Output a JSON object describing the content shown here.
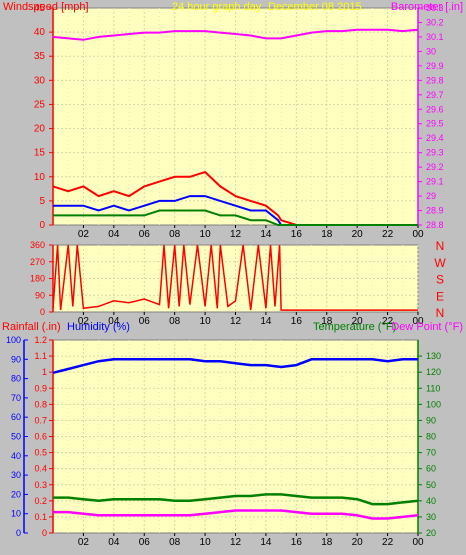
{
  "header": {
    "wind_label": "Windspeed [mph]",
    "graph_title": "24 hour graph day",
    "date": "December 08 2015",
    "baro_label": "Barometer [.in]"
  },
  "bottom_header": {
    "rain_label": "Rainfall (.in)",
    "hum_label": "Humidity (%)",
    "temp_label": "Temperature (°F)",
    "dew_label": "Dew Point (°F)"
  },
  "colors": {
    "background": "#c0c0c0",
    "plot": "#ffffc0",
    "wind": "#ff0000",
    "gust": "#0000ff",
    "avg": "#008000",
    "baro": "#ff00ff",
    "title": "#ffff00",
    "rain": "#ff0000",
    "humidity": "#0000ff",
    "temperature": "#008000",
    "dewpoint": "#ff00ff"
  },
  "chart_data": [
    {
      "type": "line",
      "name": "wind-barometer",
      "x_ticks": [
        "02",
        "04",
        "06",
        "08",
        "10",
        "12",
        "14",
        "16",
        "18",
        "20",
        "22",
        "00"
      ],
      "xlim": [
        0,
        24
      ],
      "ylim_left": [
        0,
        45
      ],
      "yticks_left": [
        "0",
        "5",
        "10",
        "15",
        "20",
        "25",
        "30",
        "35",
        "40",
        "45"
      ],
      "ylim_right": [
        28.8,
        30.3
      ],
      "yticks_right": [
        "28.8",
        "28.9",
        "29",
        "29.1",
        "29.2",
        "29.3",
        "29.4",
        "29.5",
        "29.6",
        "29.7",
        "29.8",
        "29.9",
        "30",
        "30.1",
        "30.2",
        "30.3"
      ],
      "series": [
        {
          "name": "Windspeed [mph]",
          "x": [
            0,
            1,
            2,
            3,
            4,
            5,
            6,
            7,
            8,
            9,
            10,
            11,
            12,
            13,
            14,
            14.8,
            15,
            16,
            17,
            18,
            19,
            20,
            21,
            22,
            23,
            24
          ],
          "values": [
            8,
            7,
            8,
            6,
            7,
            6,
            8,
            9,
            10,
            10,
            11,
            8,
            6,
            5,
            4,
            2,
            1,
            0,
            0,
            0,
            0,
            0,
            0,
            0,
            0,
            0
          ]
        },
        {
          "name": "Wind gust",
          "x": [
            0,
            1,
            2,
            3,
            4,
            5,
            6,
            7,
            8,
            9,
            10,
            11,
            12,
            13,
            14,
            14.8,
            15,
            16,
            17,
            18,
            19,
            20,
            21,
            22,
            23,
            24
          ],
          "values": [
            4,
            4,
            4,
            3,
            4,
            3,
            4,
            5,
            5,
            6,
            6,
            5,
            4,
            3,
            3,
            1,
            0,
            0,
            0,
            0,
            0,
            0,
            0,
            0,
            0,
            0
          ]
        },
        {
          "name": "Wind avg",
          "x": [
            0,
            1,
            2,
            3,
            4,
            5,
            6,
            7,
            8,
            9,
            10,
            11,
            12,
            13,
            14,
            14.8,
            15,
            16,
            17,
            18,
            19,
            20,
            21,
            22,
            23,
            24
          ],
          "values": [
            2,
            2,
            2,
            2,
            2,
            2,
            2,
            3,
            3,
            3,
            3,
            2,
            2,
            1,
            1,
            0,
            0,
            0,
            0,
            0,
            0,
            0,
            0,
            0,
            0,
            0
          ]
        },
        {
          "name": "Barometer [.in]",
          "x": [
            0,
            1,
            2,
            3,
            4,
            5,
            6,
            7,
            8,
            9,
            10,
            11,
            12,
            13,
            14,
            15,
            16,
            17,
            18,
            19,
            20,
            21,
            22,
            23,
            24
          ],
          "values": [
            30.1,
            30.09,
            30.08,
            30.1,
            30.11,
            30.12,
            30.13,
            30.13,
            30.14,
            30.14,
            30.14,
            30.13,
            30.12,
            30.11,
            30.09,
            30.09,
            30.11,
            30.13,
            30.14,
            30.14,
            30.15,
            30.15,
            30.15,
            30.14,
            30.15
          ]
        }
      ]
    },
    {
      "type": "line",
      "name": "wind-direction",
      "x_ticks": [
        "02",
        "04",
        "06",
        "08",
        "10",
        "12",
        "14",
        "16",
        "18",
        "20",
        "22",
        "00"
      ],
      "xlim": [
        0,
        24
      ],
      "ylim": [
        0,
        360
      ],
      "yticks": [
        "0",
        "90",
        "180",
        "270",
        "360"
      ],
      "dir_labels": [
        "N",
        "W",
        "S",
        "E",
        "N"
      ],
      "series": [
        {
          "name": "Wind direction",
          "x": [
            0,
            0.3,
            0.5,
            1,
            1.3,
            1.6,
            2,
            3,
            4,
            5,
            6,
            7,
            7.3,
            7.6,
            8,
            8.3,
            8.6,
            9,
            9.5,
            10,
            10.4,
            10.8,
            11,
            11.5,
            12,
            12.5,
            13,
            13.5,
            14,
            14.3,
            14.6,
            14.9,
            15,
            16,
            18,
            20,
            22,
            24
          ],
          "values": [
            20,
            360,
            10,
            360,
            30,
            360,
            20,
            30,
            60,
            50,
            70,
            40,
            360,
            20,
            360,
            30,
            360,
            40,
            360,
            30,
            360,
            20,
            360,
            30,
            60,
            360,
            10,
            360,
            20,
            360,
            30,
            360,
            10,
            10,
            10,
            10,
            10,
            10
          ]
        }
      ]
    },
    {
      "type": "line",
      "name": "rain-humidity-temperature",
      "x_ticks": [
        "02",
        "04",
        "06",
        "08",
        "10",
        "12",
        "14",
        "16",
        "18",
        "20",
        "22",
        "00"
      ],
      "xlim": [
        0,
        24
      ],
      "ylim_rain": [
        0,
        1.2
      ],
      "yticks_rain": [
        "0",
        "0.1",
        "0.2",
        "0.3",
        "0.4",
        "0.5",
        "0.6",
        "0.7",
        "0.8",
        "0.9",
        "1",
        "1.1",
        "1.2"
      ],
      "ylim_hum": [
        0,
        100
      ],
      "yticks_hum": [
        "0",
        "10",
        "20",
        "30",
        "40",
        "50",
        "60",
        "70",
        "80",
        "90",
        "100"
      ],
      "ylim_temp": [
        20,
        140
      ],
      "yticks_temp": [
        "20",
        "30",
        "40",
        "50",
        "60",
        "70",
        "80",
        "90",
        "100",
        "110",
        "120",
        "130"
      ],
      "series": [
        {
          "name": "Humidity (%)",
          "x": [
            0,
            1,
            2,
            3,
            4,
            5,
            6,
            7,
            8,
            9,
            10,
            11,
            12,
            13,
            14,
            15,
            16,
            17,
            18,
            19,
            20,
            21,
            22,
            23,
            24
          ],
          "values": [
            83,
            85,
            87,
            89,
            90,
            90,
            90,
            90,
            90,
            90,
            89,
            89,
            88,
            87,
            87,
            86,
            87,
            90,
            90,
            90,
            90,
            90,
            89,
            90,
            90
          ]
        },
        {
          "name": "Temperature (°F)",
          "x": [
            0,
            1,
            2,
            3,
            4,
            5,
            6,
            7,
            8,
            9,
            10,
            11,
            12,
            13,
            14,
            15,
            16,
            17,
            18,
            19,
            20,
            21,
            22,
            23,
            24
          ],
          "values": [
            42,
            42,
            41,
            40,
            41,
            41,
            41,
            41,
            40,
            40,
            41,
            42,
            43,
            43,
            44,
            44,
            43,
            42,
            42,
            42,
            41,
            38,
            38,
            39,
            40
          ]
        },
        {
          "name": "Dew Point (°F)",
          "x": [
            0,
            1,
            2,
            3,
            4,
            5,
            6,
            7,
            8,
            9,
            10,
            11,
            12,
            13,
            14,
            15,
            16,
            17,
            18,
            19,
            20,
            21,
            22,
            23,
            24
          ],
          "values": [
            33,
            33,
            32,
            31,
            31,
            31,
            31,
            31,
            31,
            31,
            32,
            33,
            34,
            34,
            34,
            34,
            33,
            32,
            32,
            32,
            31,
            29,
            29,
            30,
            31
          ]
        }
      ]
    }
  ]
}
